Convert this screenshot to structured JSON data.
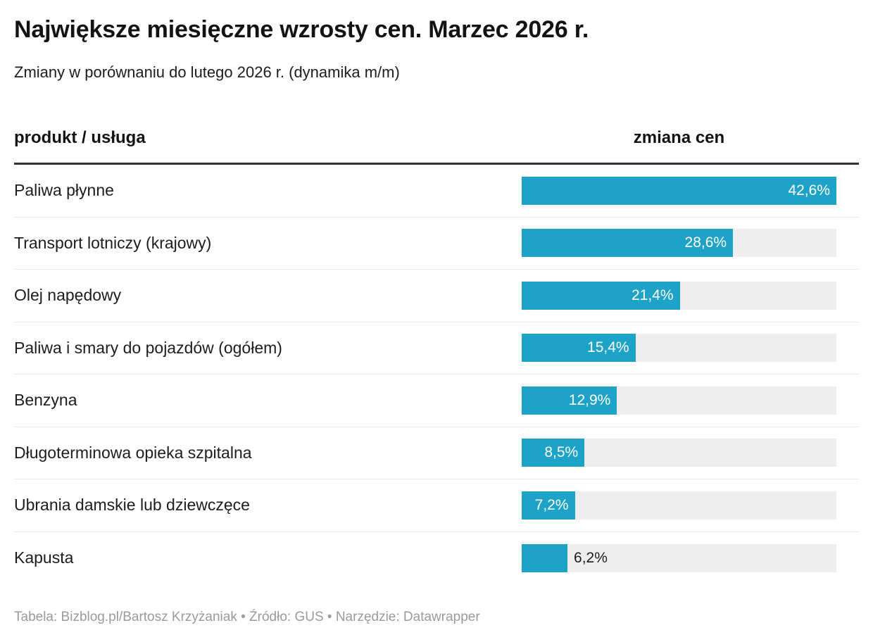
{
  "page": {
    "title": "Największe miesięczne wzrosty cen. Marzec 2026 r.",
    "subtitle": "Zmiany w porównaniu do lutego 2026 r. (dynamika m/m)",
    "footer": "Tabela: Bizblog.pl/Bartosz Krzyżaniak • Źródło: GUS • Narzędzie: Datawrapper"
  },
  "table": {
    "col_product": "produkt / usługa",
    "col_change": "zmiana cen"
  },
  "chart_data": {
    "type": "bar",
    "orientation": "horizontal",
    "title": "Największe miesięczne wzrosty cen. Marzec 2026 r.",
    "subtitle": "Zmiany w porównaniu do lutego 2026 r. (dynamika m/m)",
    "unit": "%",
    "categories": [
      "Paliwa płynne",
      "Transport lotniczy (krajowy)",
      "Olej napędowy",
      "Paliwa i smary do pojazdów (ogółem)",
      "Benzyna",
      "Długoterminowa opieka szpitalna",
      "Ubrania damskie lub dziewczęce",
      "Kapusta"
    ],
    "values": [
      42.6,
      28.6,
      21.4,
      15.4,
      12.9,
      8.5,
      7.2,
      6.2
    ],
    "value_labels": [
      "42,6%",
      "28,6%",
      "21,4%",
      "15,4%",
      "12,9%",
      "8,5%",
      "7,2%",
      "6,2%"
    ],
    "xlim": [
      0,
      42.6
    ],
    "grid": false,
    "legend": "none",
    "bar_color": "#1da2c8",
    "track_color": "#eeeeee",
    "source_note": "Tabela: Bizblog.pl/Bartosz Krzyżaniak • Źródło: GUS • Narzędzie: Datawrapper"
  }
}
